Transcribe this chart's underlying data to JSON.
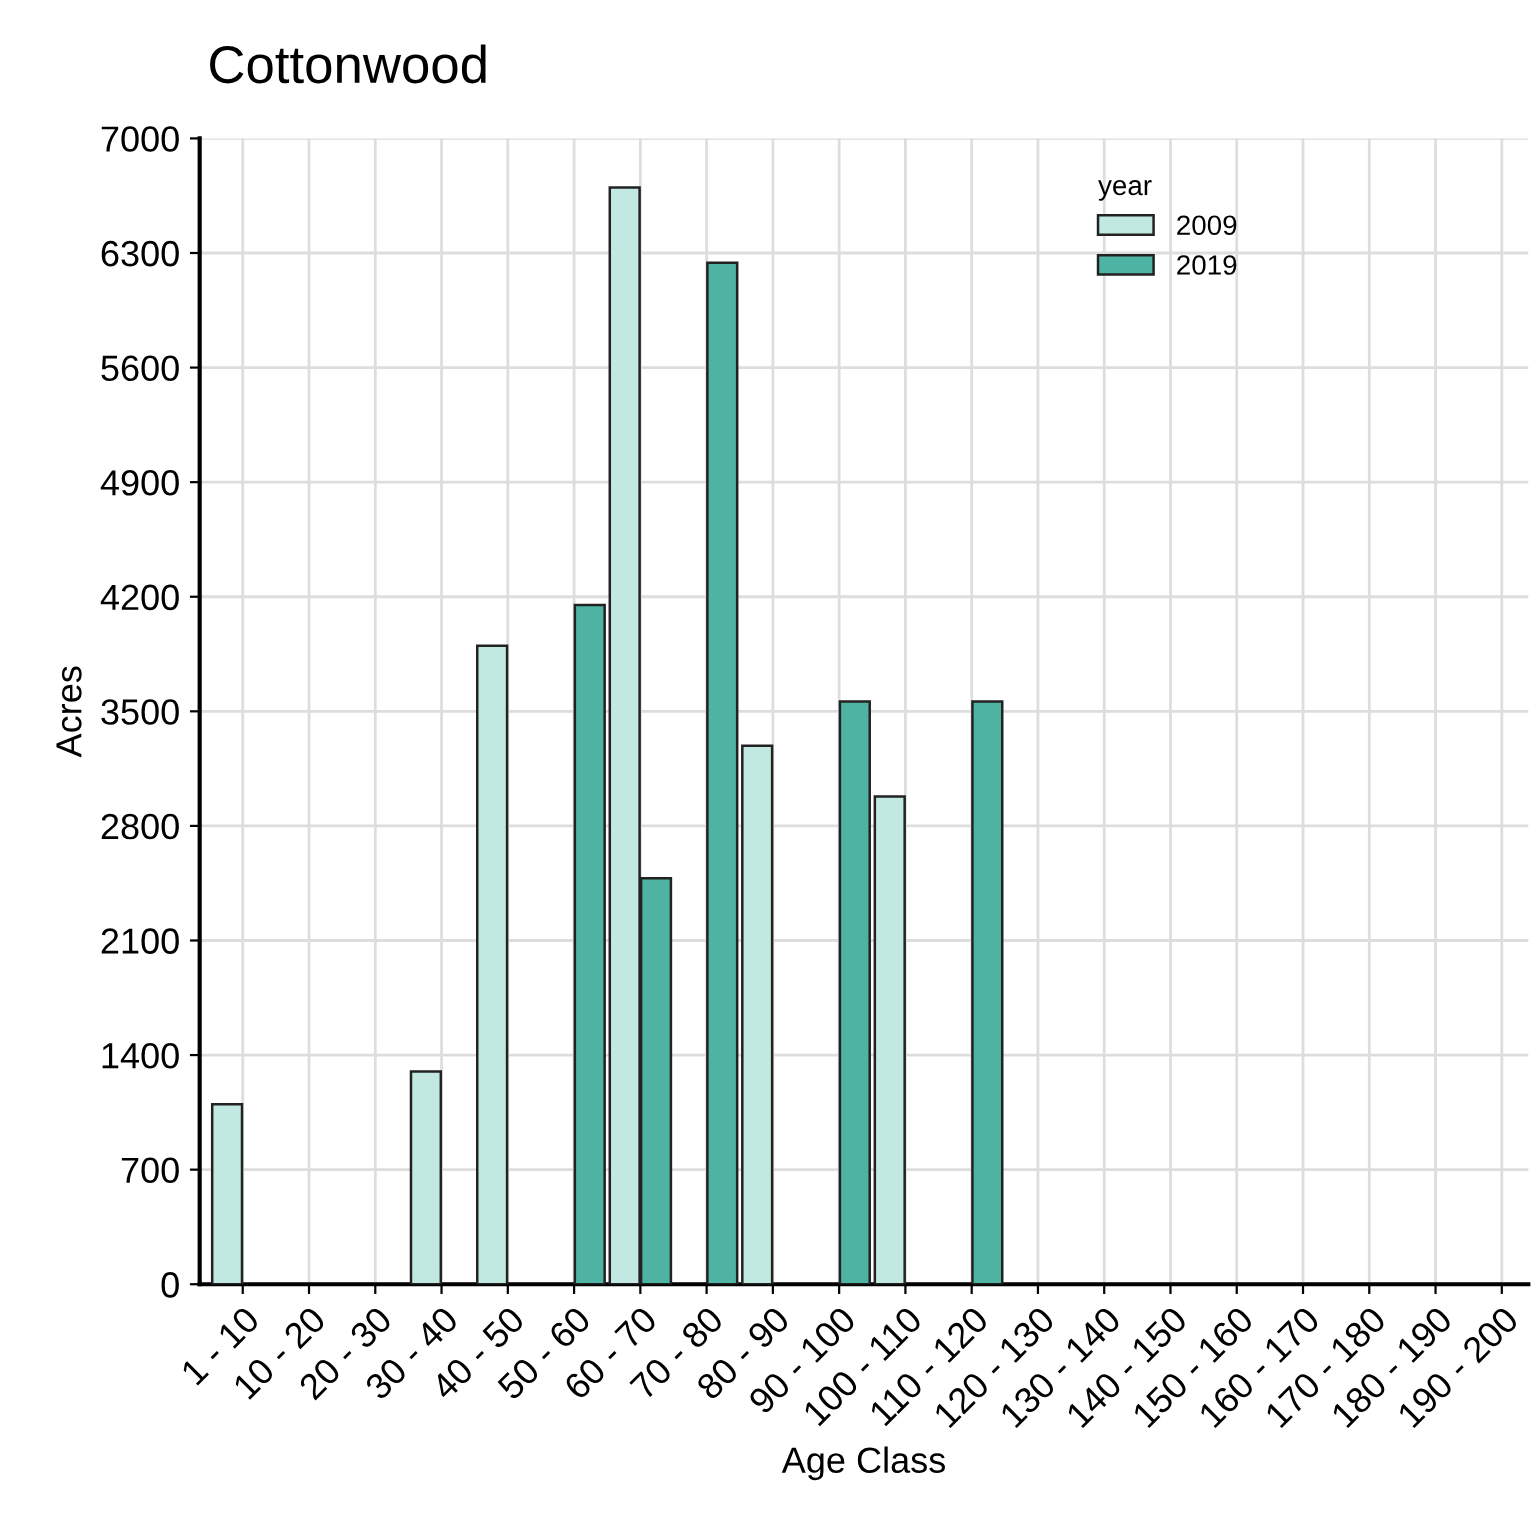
{
  "chart_data": {
    "type": "bar",
    "title": "Cottonwood",
    "xlabel": "Age Class",
    "ylabel": "Acres",
    "legend_title": "year",
    "categories": [
      "1 - 10",
      "10 - 20",
      "20 - 30",
      "30 - 40",
      "40 - 50",
      "50 - 60",
      "60 - 70",
      "70 - 80",
      "80 - 90",
      "90 - 100",
      "100 - 110",
      "110 - 120",
      "120 - 130",
      "130 - 140",
      "140 - 150",
      "150 - 160",
      "160 - 170",
      "170 - 180",
      "180 - 190",
      "190 - 200"
    ],
    "series": [
      {
        "name": "2009",
        "color": "#c2e9e1",
        "values": [
          1100,
          null,
          null,
          1300,
          3900,
          null,
          6700,
          null,
          3290,
          null,
          2980,
          null,
          null,
          null,
          null,
          null,
          null,
          null,
          null,
          null
        ]
      },
      {
        "name": "2019",
        "color": "#4fb3a3",
        "values": [
          null,
          null,
          null,
          null,
          null,
          4150,
          2480,
          6240,
          null,
          3560,
          null,
          3560,
          null,
          null,
          null,
          null,
          null,
          null,
          null,
          null
        ]
      }
    ],
    "ylim": [
      0,
      7000
    ],
    "yticks": [
      0,
      700,
      1400,
      2100,
      2800,
      3500,
      4200,
      4900,
      5600,
      6300,
      7000
    ],
    "grid": true,
    "legend": "top right"
  }
}
